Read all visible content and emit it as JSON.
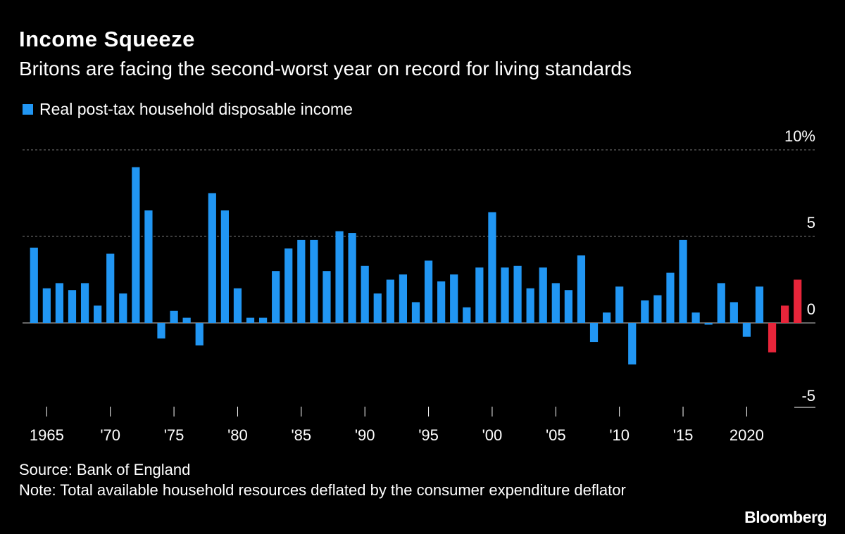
{
  "chart_data": {
    "type": "bar",
    "title": "Income Squeeze",
    "subtitle": "Britons are facing the second-worst year on record for living standards",
    "source": "Source: Bank of England",
    "note": "Note: Total available household resources deflated by the consumer expenditure deflator",
    "brand": "Bloomberg",
    "legend": {
      "name": "Real post-tax household disposable income",
      "color": "#2196f3"
    },
    "x": [
      1964,
      1965,
      1966,
      1967,
      1968,
      1969,
      1970,
      1971,
      1972,
      1973,
      1974,
      1975,
      1976,
      1977,
      1978,
      1979,
      1980,
      1981,
      1982,
      1983,
      1984,
      1985,
      1986,
      1987,
      1988,
      1989,
      1990,
      1991,
      1992,
      1993,
      1994,
      1995,
      1996,
      1997,
      1998,
      1999,
      2000,
      2001,
      2002,
      2003,
      2004,
      2005,
      2006,
      2007,
      2008,
      2009,
      2010,
      2011,
      2012,
      2013,
      2014,
      2015,
      2016,
      2017,
      2018,
      2019,
      2020,
      2021,
      2022,
      2023,
      2024
    ],
    "values": [
      4.35,
      2.0,
      2.3,
      1.9,
      2.3,
      1.0,
      4.0,
      1.7,
      9.0,
      6.5,
      -0.9,
      0.7,
      0.3,
      -1.3,
      7.5,
      6.5,
      2.0,
      0.3,
      0.3,
      3.0,
      4.3,
      4.8,
      4.8,
      3.0,
      5.3,
      5.2,
      3.3,
      1.7,
      2.5,
      2.8,
      1.2,
      3.6,
      2.4,
      2.8,
      0.9,
      3.2,
      6.4,
      3.2,
      3.3,
      2.0,
      3.2,
      2.3,
      1.9,
      3.9,
      -1.1,
      0.6,
      2.1,
      -2.4,
      1.3,
      1.6,
      2.9,
      4.8,
      0.6,
      -0.1,
      2.3,
      1.2,
      -0.8,
      2.1,
      -1.7,
      1.0,
      2.5
    ],
    "colors": [
      "#2196f3",
      "#2196f3",
      "#2196f3",
      "#2196f3",
      "#2196f3",
      "#2196f3",
      "#2196f3",
      "#2196f3",
      "#2196f3",
      "#2196f3",
      "#2196f3",
      "#2196f3",
      "#2196f3",
      "#2196f3",
      "#2196f3",
      "#2196f3",
      "#2196f3",
      "#2196f3",
      "#2196f3",
      "#2196f3",
      "#2196f3",
      "#2196f3",
      "#2196f3",
      "#2196f3",
      "#2196f3",
      "#2196f3",
      "#2196f3",
      "#2196f3",
      "#2196f3",
      "#2196f3",
      "#2196f3",
      "#2196f3",
      "#2196f3",
      "#2196f3",
      "#2196f3",
      "#2196f3",
      "#2196f3",
      "#2196f3",
      "#2196f3",
      "#2196f3",
      "#2196f3",
      "#2196f3",
      "#2196f3",
      "#2196f3",
      "#2196f3",
      "#2196f3",
      "#2196f3",
      "#2196f3",
      "#2196f3",
      "#2196f3",
      "#2196f3",
      "#2196f3",
      "#2196f3",
      "#2196f3",
      "#2196f3",
      "#2196f3",
      "#2196f3",
      "#2196f3",
      "#e8253a",
      "#e8253a",
      "#e8253a"
    ],
    "xlim": [
      1963.1,
      2025.4
    ],
    "xticks": [
      {
        "value": 1965,
        "label": "1965"
      },
      {
        "value": 1970,
        "label": "'70"
      },
      {
        "value": 1975,
        "label": "'75"
      },
      {
        "value": 1980,
        "label": "'80"
      },
      {
        "value": 1985,
        "label": "'85"
      },
      {
        "value": 1990,
        "label": "'90"
      },
      {
        "value": 1995,
        "label": "'95"
      },
      {
        "value": 2000,
        "label": "'00"
      },
      {
        "value": 2005,
        "label": "'05"
      },
      {
        "value": 2010,
        "label": "'10"
      },
      {
        "value": 2015,
        "label": "'15"
      },
      2020
    ],
    "ylim": [
      -5,
      10
    ],
    "yticks": [
      {
        "value": 10,
        "label": "10%"
      },
      5,
      0,
      -5
    ],
    "grid": true
  }
}
